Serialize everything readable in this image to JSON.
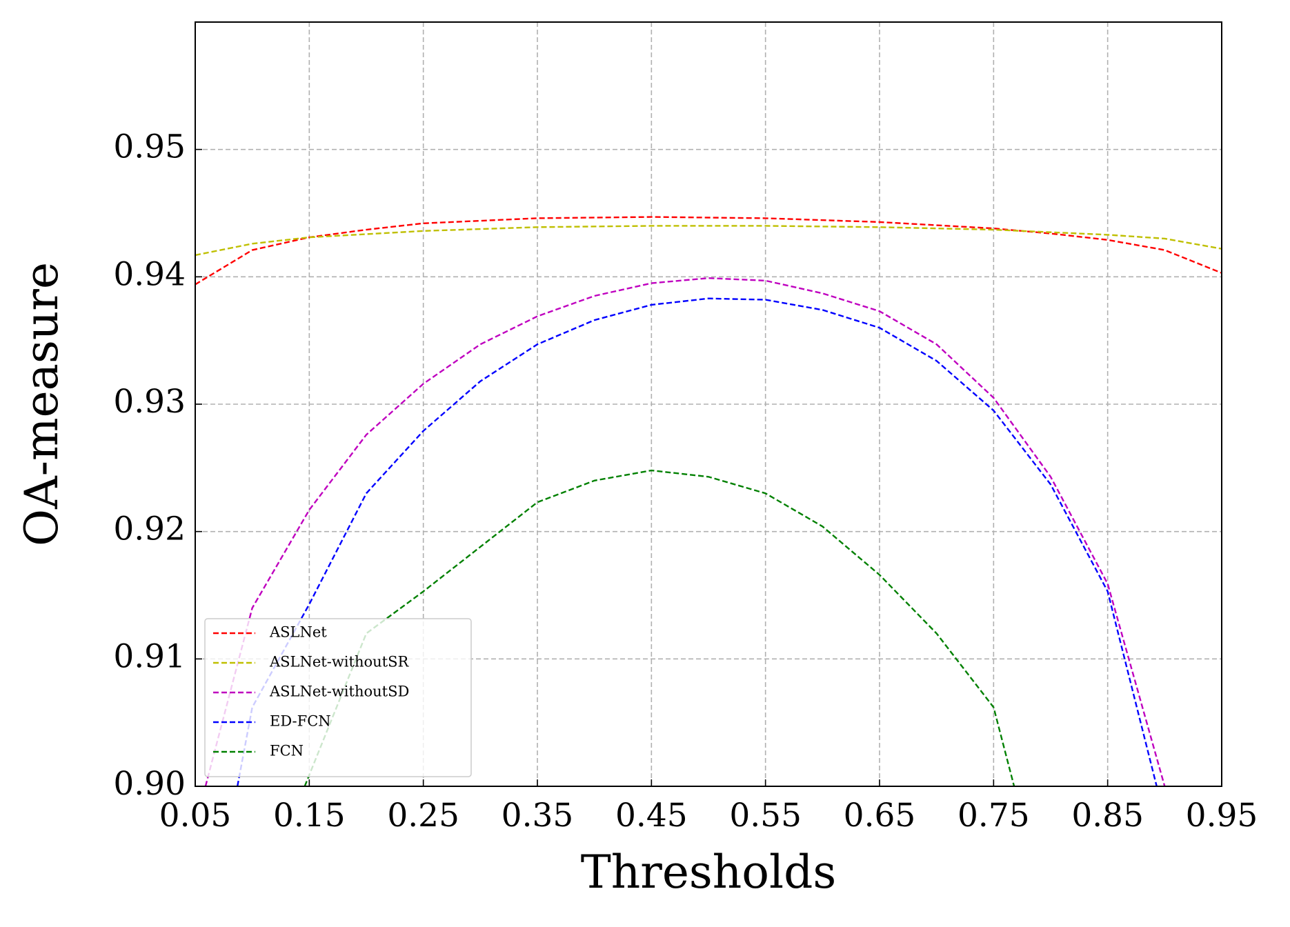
{
  "chart_data": {
    "type": "line",
    "xlabel": "Thresholds",
    "ylabel": "OA-measure",
    "xlim": [
      0.05,
      0.95
    ],
    "ylim": [
      0.9,
      0.96
    ],
    "xticks": [
      0.05,
      0.15,
      0.25,
      0.35,
      0.45,
      0.55,
      0.65,
      0.75,
      0.85,
      0.95
    ],
    "yticks": [
      {
        "value": 0.9,
        "label": "0.90"
      },
      0.91,
      0.92,
      0.93,
      0.94,
      0.95
    ],
    "grid": true,
    "legend": "lower left",
    "series": [
      {
        "name": "ASLNet",
        "color": "#ff0000",
        "x": [
          0.05,
          0.1,
          0.15,
          0.2,
          0.25,
          0.35,
          0.45,
          0.55,
          0.65,
          0.75,
          0.8,
          0.85,
          0.9,
          0.95
        ],
        "values": [
          0.9394,
          0.9421,
          0.9431,
          0.9437,
          0.9442,
          0.9446,
          0.9447,
          0.9446,
          0.9443,
          0.9438,
          0.9434,
          0.9429,
          0.9421,
          0.9403
        ]
      },
      {
        "name": "ASLNet-withoutSR",
        "color": "#bfbf00",
        "x": [
          0.05,
          0.1,
          0.15,
          0.25,
          0.35,
          0.45,
          0.55,
          0.65,
          0.75,
          0.85,
          0.9,
          0.95
        ],
        "values": [
          0.9417,
          0.9426,
          0.9431,
          0.9436,
          0.9439,
          0.944,
          0.944,
          0.9439,
          0.9437,
          0.9433,
          0.943,
          0.9422
        ]
      },
      {
        "name": "ASLNet-withoutSD",
        "color": "#bf00bf",
        "x": [
          0.059,
          0.1,
          0.15,
          0.2,
          0.25,
          0.3,
          0.35,
          0.4,
          0.45,
          0.5,
          0.55,
          0.6,
          0.65,
          0.7,
          0.75,
          0.8,
          0.85,
          0.9
        ],
        "values": [
          0.9,
          0.914,
          0.9217,
          0.9276,
          0.9316,
          0.9347,
          0.9369,
          0.9385,
          0.9395,
          0.9399,
          0.9397,
          0.9387,
          0.9373,
          0.9347,
          0.9305,
          0.9243,
          0.9159,
          0.9
        ]
      },
      {
        "name": "ED-FCN",
        "color": "#0000ff",
        "x": [
          0.087,
          0.1,
          0.15,
          0.2,
          0.25,
          0.3,
          0.35,
          0.4,
          0.45,
          0.5,
          0.55,
          0.6,
          0.65,
          0.7,
          0.75,
          0.8,
          0.85,
          0.893
        ],
        "values": [
          0.9,
          0.9062,
          0.9143,
          0.923,
          0.9279,
          0.9318,
          0.9347,
          0.9366,
          0.9378,
          0.9383,
          0.9382,
          0.9374,
          0.936,
          0.9334,
          0.9295,
          0.9237,
          0.9153,
          0.9
        ]
      },
      {
        "name": "FCN",
        "color": "#008000",
        "x": [
          0.146,
          0.2,
          0.25,
          0.3,
          0.35,
          0.4,
          0.45,
          0.5,
          0.55,
          0.6,
          0.65,
          0.7,
          0.75,
          0.768
        ],
        "values": [
          0.9,
          0.912,
          0.9153,
          0.9188,
          0.9223,
          0.924,
          0.9248,
          0.9243,
          0.923,
          0.9204,
          0.9166,
          0.912,
          0.9062,
          0.9
        ]
      }
    ]
  }
}
